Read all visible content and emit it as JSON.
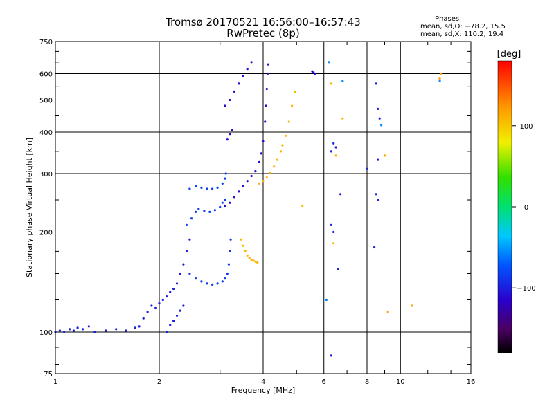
{
  "title_line1": "Tromsø 20170521 16:56:00–16:57:43",
  "title_line2": "RwPretec (8p)",
  "phase_info": {
    "heading": "Phases",
    "line_o": "mean, sd,O: −78.2, 15.5",
    "line_x": "mean, sd,X: 110.2, 19.4"
  },
  "colorbar": {
    "unit_label": "[deg]",
    "tick_values": [
      100,
      0,
      -100
    ],
    "tick_labels": [
      "100",
      "0",
      "−100"
    ],
    "range": [
      -180,
      180
    ]
  },
  "chart_data": {
    "type": "scatter",
    "xlabel": "Frequency [MHz]",
    "ylabel": "Stationary phase Virtual Height [km]",
    "x_scale": "log",
    "y_scale": "log",
    "xlim": [
      1,
      16
    ],
    "ylim": [
      75,
      750
    ],
    "x_ticks": [
      1,
      2,
      4,
      6,
      8,
      10,
      16
    ],
    "x_tick_labels": [
      "1",
      "2",
      "4",
      "6",
      "8",
      "10",
      "16"
    ],
    "y_ticks": [
      75,
      100,
      200,
      300,
      400,
      500,
      600,
      750
    ],
    "y_tick_labels": [
      "75",
      "100",
      "200",
      "300",
      "400",
      "500",
      "600",
      "750"
    ],
    "grid": true,
    "series": [
      {
        "color_phase": -100,
        "points": [
          [
            1.0,
            100
          ],
          [
            1.03,
            101
          ],
          [
            1.06,
            100
          ],
          [
            1.1,
            102
          ],
          [
            1.13,
            101
          ],
          [
            1.16,
            103
          ],
          [
            1.2,
            102
          ],
          [
            1.25,
            104
          ],
          [
            1.3,
            100
          ],
          [
            1.4,
            101
          ],
          [
            1.5,
            102
          ],
          [
            1.6,
            101
          ],
          [
            1.7,
            103
          ],
          [
            1.75,
            104
          ],
          [
            1.8,
            110
          ],
          [
            1.85,
            115
          ],
          [
            1.9,
            120
          ],
          [
            1.95,
            118
          ],
          [
            2.0,
            122
          ],
          [
            2.05,
            125
          ],
          [
            2.1,
            128
          ],
          [
            2.15,
            132
          ],
          [
            2.2,
            135
          ],
          [
            2.25,
            140
          ],
          [
            2.3,
            150
          ],
          [
            2.35,
            160
          ],
          [
            2.4,
            175
          ],
          [
            2.45,
            190
          ]
        ]
      },
      {
        "color_phase": -100,
        "points": [
          [
            2.1,
            100
          ],
          [
            2.15,
            105
          ],
          [
            2.2,
            108
          ],
          [
            2.25,
            112
          ],
          [
            2.3,
            116
          ],
          [
            2.35,
            120
          ]
        ]
      },
      {
        "color_phase": -90,
        "points": [
          [
            2.45,
            150
          ],
          [
            2.55,
            145
          ],
          [
            2.65,
            142
          ],
          [
            2.75,
            140
          ],
          [
            2.85,
            139
          ],
          [
            2.95,
            140
          ],
          [
            3.05,
            142
          ],
          [
            3.1,
            145
          ],
          [
            3.15,
            150
          ],
          [
            3.18,
            160
          ],
          [
            3.2,
            175
          ],
          [
            3.22,
            190
          ]
        ]
      },
      {
        "color_phase": -85,
        "points": [
          [
            2.4,
            210
          ],
          [
            2.48,
            220
          ],
          [
            2.55,
            230
          ],
          [
            2.6,
            235
          ],
          [
            2.7,
            232
          ],
          [
            2.8,
            230
          ],
          [
            2.9,
            233
          ],
          [
            3.0,
            238
          ],
          [
            3.05,
            245
          ],
          [
            3.1,
            250
          ]
        ]
      },
      {
        "color_phase": -85,
        "points": [
          [
            2.45,
            270
          ],
          [
            2.55,
            275
          ],
          [
            2.65,
            272
          ],
          [
            2.75,
            270
          ],
          [
            2.85,
            270
          ],
          [
            2.95,
            272
          ],
          [
            3.05,
            280
          ],
          [
            3.1,
            290
          ],
          [
            3.12,
            300
          ]
        ]
      },
      {
        "color_phase": -110,
        "points": [
          [
            3.1,
            240
          ],
          [
            3.2,
            245
          ],
          [
            3.3,
            255
          ],
          [
            3.4,
            265
          ],
          [
            3.5,
            275
          ],
          [
            3.6,
            285
          ],
          [
            3.7,
            295
          ],
          [
            3.8,
            305
          ],
          [
            3.9,
            325
          ],
          [
            3.95,
            345
          ],
          [
            4.0,
            375
          ],
          [
            4.05,
            430
          ],
          [
            4.08,
            480
          ],
          [
            4.1,
            540
          ],
          [
            4.12,
            600
          ],
          [
            4.14,
            640
          ]
        ]
      },
      {
        "color_phase": -110,
        "points": [
          [
            3.1,
            480
          ],
          [
            3.2,
            500
          ],
          [
            3.3,
            530
          ],
          [
            3.4,
            560
          ],
          [
            3.5,
            590
          ],
          [
            3.6,
            620
          ],
          [
            3.7,
            650
          ]
        ]
      },
      {
        "color_phase": -110,
        "points": [
          [
            3.15,
            380
          ],
          [
            3.2,
            395
          ],
          [
            3.25,
            405
          ]
        ]
      },
      {
        "color_phase": 110,
        "points": [
          [
            3.9,
            280
          ],
          [
            4.0,
            285
          ],
          [
            4.1,
            292
          ],
          [
            4.2,
            302
          ],
          [
            4.3,
            315
          ],
          [
            4.4,
            330
          ],
          [
            4.5,
            350
          ],
          [
            4.55,
            365
          ],
          [
            4.65,
            390
          ],
          [
            4.75,
            430
          ],
          [
            4.85,
            480
          ],
          [
            4.95,
            530
          ]
        ]
      },
      {
        "color_phase": 110,
        "points": [
          [
            3.45,
            190
          ],
          [
            3.5,
            182
          ],
          [
            3.55,
            175
          ],
          [
            3.6,
            170
          ],
          [
            3.65,
            167
          ],
          [
            3.7,
            165
          ],
          [
            3.75,
            164
          ],
          [
            3.8,
            163
          ],
          [
            3.85,
            162
          ]
        ]
      },
      {
        "color_phase": -110,
        "points": [
          [
            5.55,
            610
          ],
          [
            5.6,
            605
          ],
          [
            5.65,
            600
          ]
        ]
      },
      {
        "color_phase": -100,
        "points": [
          [
            6.3,
            350
          ],
          [
            6.4,
            370
          ],
          [
            6.5,
            360
          ],
          [
            6.3,
            210
          ],
          [
            6.4,
            200
          ],
          [
            6.6,
            155
          ],
          [
            6.7,
            260
          ],
          [
            6.3,
            85
          ]
        ]
      },
      {
        "color_phase": 110,
        "points": [
          [
            6.3,
            560
          ],
          [
            6.5,
            340
          ],
          [
            6.8,
            440
          ],
          [
            5.2,
            240
          ],
          [
            6.4,
            185
          ]
        ]
      },
      {
        "color_phase": -100,
        "points": [
          [
            8.5,
            560
          ],
          [
            8.6,
            470
          ],
          [
            8.5,
            260
          ],
          [
            8.6,
            250
          ],
          [
            8.4,
            180
          ],
          [
            8.7,
            440
          ],
          [
            8.0,
            310
          ],
          [
            8.6,
            330
          ]
        ]
      },
      {
        "color_phase": 120,
        "points": [
          [
            9.0,
            340
          ],
          [
            9.2,
            115
          ],
          [
            10.8,
            120
          ],
          [
            13.0,
            580
          ],
          [
            13.1,
            600
          ]
        ]
      },
      {
        "color_phase": -60,
        "points": [
          [
            6.2,
            650
          ],
          [
            6.8,
            570
          ],
          [
            6.1,
            125
          ],
          [
            8.8,
            420
          ],
          [
            13.0,
            570
          ]
        ]
      }
    ]
  }
}
